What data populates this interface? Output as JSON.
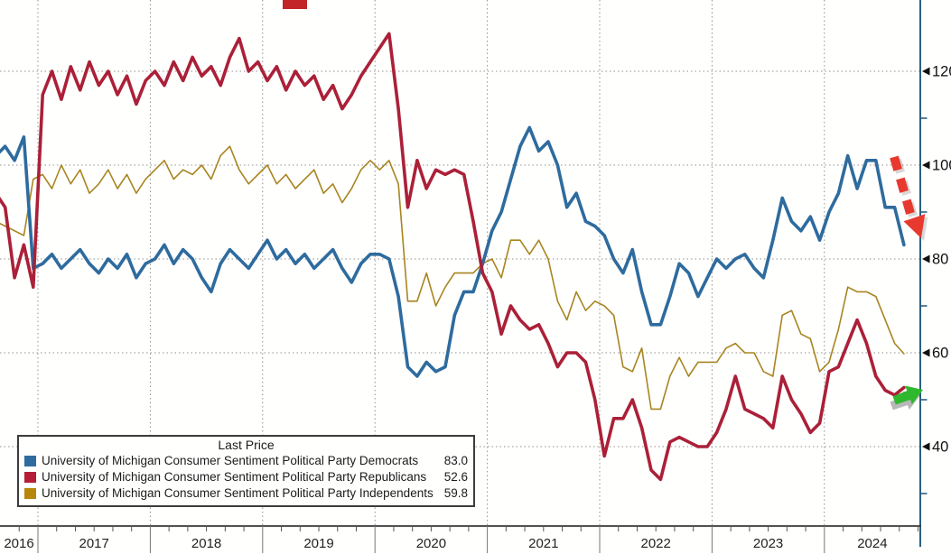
{
  "legend": {
    "title": "Last Price",
    "items": [
      {
        "label": "University of Michigan Consumer Sentiment Political Party Democrats",
        "value": "83.0",
        "color": "#2e6b9e"
      },
      {
        "label": "University of Michigan Consumer Sentiment Political Party Republicans",
        "value": "52.6",
        "color": "#b51e36"
      },
      {
        "label": "University of Michigan Consumer Sentiment Political Party Independents",
        "value": "59.8",
        "color": "#b8860b"
      }
    ]
  },
  "colors": {
    "democrats": "#2e6b9e",
    "republicans": "#ab2038",
    "independents": "#a8851f",
    "axis": "#2b5f80",
    "bottom_axis": "#3a3a3a",
    "grid": "#909090",
    "tick_text": "#101010",
    "year_text": "#222222",
    "down_arrow": "#e8392e",
    "up_arrow": "#2eb82e",
    "top_box": "#c32427"
  },
  "chart_data": {
    "type": "line",
    "frequency": "monthly",
    "x_start": "2016-08",
    "x_end": "2024-09",
    "x_tick_labels": [
      "2016",
      "2017",
      "2018",
      "2019",
      "2020",
      "2021",
      "2022",
      "2023",
      "2024"
    ],
    "y_ticks": [
      120,
      100,
      80,
      60,
      40
    ],
    "y_minor_ticks": [
      110,
      90,
      70,
      50,
      30
    ],
    "ylim": [
      23,
      135
    ],
    "grid": "dotted",
    "legend_position": "bottom-left",
    "axis_position": "right",
    "series": [
      {
        "name": "University of Michigan Consumer Sentiment Political Party Independents",
        "last_price": 59.8,
        "color": "#a8851f",
        "width": 1.6,
        "values": [
          88,
          87,
          86,
          85,
          97,
          98,
          95,
          100,
          96,
          99,
          94,
          96,
          99,
          95,
          98,
          94,
          97,
          99,
          101,
          97,
          99,
          98,
          100,
          97,
          102,
          104,
          99,
          96,
          98,
          100,
          96,
          98,
          95,
          97,
          99,
          94,
          96,
          92,
          95,
          99,
          101,
          99,
          101,
          96,
          71,
          71,
          77,
          70,
          74,
          77,
          77,
          77,
          79,
          80,
          76,
          84,
          84,
          81,
          84,
          80,
          71,
          67,
          73,
          69,
          71,
          70,
          68,
          57,
          56,
          61,
          48,
          48,
          55,
          59,
          55,
          58,
          58,
          58,
          61,
          62,
          60,
          60,
          56,
          55,
          68,
          69,
          64,
          63,
          56,
          58,
          65,
          74,
          73,
          73,
          72,
          67,
          62,
          59.8
        ]
      },
      {
        "name": "University of Michigan Consumer Sentiment Political Party Democrats",
        "last_price": 83.0,
        "color": "#2e6b9e",
        "width": 3.6,
        "values": [
          102,
          104,
          101,
          106,
          78,
          79,
          81,
          78,
          80,
          82,
          79,
          77,
          80,
          78,
          81,
          76,
          79,
          80,
          83,
          79,
          82,
          80,
          76,
          73,
          79,
          82,
          80,
          78,
          81,
          84,
          80,
          82,
          79,
          81,
          78,
          80,
          82,
          78,
          75,
          79,
          81,
          81,
          80,
          72,
          57,
          55,
          58,
          56,
          57,
          68,
          73,
          73,
          79,
          86,
          90,
          97,
          104,
          108,
          103,
          105,
          100,
          91,
          94,
          88,
          87,
          85,
          80,
          77,
          82,
          73,
          66,
          66,
          72,
          79,
          77,
          72,
          76,
          80,
          78,
          80,
          81,
          78,
          76,
          84,
          93,
          88,
          86,
          89,
          84,
          90,
          94,
          102,
          95,
          101,
          101,
          91,
          91,
          83.0
        ]
      },
      {
        "name": "University of Michigan Consumer Sentiment Political Party Republicans",
        "last_price": 52.6,
        "color": "#ab2038",
        "width": 3.6,
        "values": [
          94,
          91,
          76,
          83,
          74,
          115,
          120,
          114,
          121,
          116,
          122,
          117,
          120,
          115,
          119,
          113,
          118,
          120,
          117,
          122,
          118,
          123,
          119,
          121,
          117,
          123,
          127,
          120,
          122,
          118,
          121,
          116,
          120,
          117,
          119,
          114,
          117,
          112,
          115,
          119,
          122,
          125,
          128,
          112,
          91,
          101,
          95,
          99,
          98,
          99,
          98,
          88,
          77,
          73,
          64,
          70,
          67,
          65,
          66,
          62,
          57,
          60,
          60,
          58,
          50,
          38,
          46,
          46,
          50,
          44,
          35,
          33,
          41,
          42,
          41,
          40,
          40,
          43,
          48,
          55,
          48,
          47,
          46,
          44,
          55,
          50,
          47,
          43,
          45,
          56,
          57,
          62,
          67,
          62,
          55,
          52,
          51,
          52.6
        ]
      }
    ],
    "annotations": [
      {
        "type": "arrow",
        "direction": "down-right",
        "style": "dashed",
        "color": "#e8392e",
        "target": "Democrats last price 83.0"
      },
      {
        "type": "arrow",
        "direction": "up-right",
        "style": "solid",
        "color": "#2eb82e",
        "target": "Republicans last price 52.6"
      },
      {
        "type": "box",
        "color": "#c32427",
        "position": "top-edge"
      }
    ]
  }
}
